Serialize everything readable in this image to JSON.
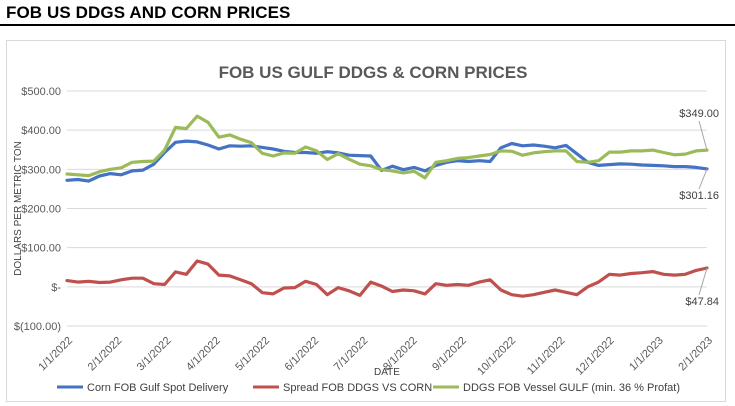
{
  "page": {
    "heading": "FOB US DDGS AND CORN PRICES"
  },
  "chart_data": {
    "type": "line",
    "title": "FOB US GULF DDGS & CORN PRICES",
    "xlabel": "DATE",
    "ylabel": "DOLLARS PER METRIC TON",
    "ylim": [
      -100,
      500
    ],
    "yticks": [
      {
        "value": 500,
        "label": "$500.00"
      },
      {
        "value": 400,
        "label": "$400.00"
      },
      {
        "value": 300,
        "label": "$300.00"
      },
      {
        "value": 200,
        "label": "$200.00"
      },
      {
        "value": 100,
        "label": "$100.00"
      },
      {
        "value": 0,
        "label": "$-"
      },
      {
        "value": -100,
        "label": "$(100.00)"
      }
    ],
    "x_tick_labels": [
      "1/1/2022",
      "2/1/2022",
      "3/1/2022",
      "4/1/2022",
      "5/1/2022",
      "6/1/2022",
      "7/1/2022",
      "8/1/2022",
      "9/1/2022",
      "10/1/2022",
      "11/1/2022",
      "12/1/2022",
      "1/1/2023",
      "2/1/2023"
    ],
    "grid": true,
    "legend_position": "bottom",
    "series": [
      {
        "name": "Corn FOB Gulf Spot Delivery",
        "color": "#4472c4",
        "end_label": "$301.16",
        "values": [
          272,
          274,
          270,
          283,
          289,
          286,
          296,
          298,
          313,
          343,
          369,
          372,
          370,
          362,
          352,
          360,
          359,
          360,
          356,
          352,
          346,
          343,
          343,
          341,
          345,
          342,
          336,
          335,
          334,
          297,
          308,
          299,
          305,
          296,
          310,
          318,
          322,
          320,
          322,
          320,
          355,
          366,
          360,
          362,
          359,
          355,
          361,
          340,
          318,
          310,
          312,
          314,
          313,
          311,
          310,
          309,
          307,
          307,
          305,
          301
        ]
      },
      {
        "name": "Spread FOB DDGS VS CORN",
        "color": "#c0504d",
        "end_label": "$47.84",
        "values": [
          16,
          12,
          14,
          11,
          12,
          18,
          22,
          22,
          8,
          6,
          38,
          32,
          66,
          58,
          30,
          28,
          18,
          8,
          -15,
          -18,
          -3,
          -2,
          14,
          6,
          -20,
          -2,
          -10,
          -22,
          12,
          2,
          -12,
          -8,
          -10,
          -18,
          8,
          4,
          6,
          4,
          12,
          18,
          -8,
          -20,
          -24,
          -20,
          -14,
          -8,
          -14,
          -20,
          0,
          12,
          32,
          30,
          34,
          36,
          39,
          32,
          30,
          32,
          42,
          48
        ]
      },
      {
        "name": "DDGS FOB Vessel GULF  (min. 36 % Profat)",
        "color": "#9bbb59",
        "end_label": "$349.00",
        "values": [
          288,
          286,
          284,
          294,
          300,
          304,
          318,
          320,
          321,
          349,
          407,
          404,
          436,
          420,
          382,
          388,
          377,
          368,
          341,
          334,
          342,
          341,
          357,
          347,
          325,
          340,
          326,
          313,
          309,
          299,
          296,
          291,
          295,
          278,
          318,
          322,
          328,
          330,
          334,
          338,
          347,
          346,
          336,
          342,
          345,
          347,
          347,
          320,
          318,
          322,
          344,
          344,
          347,
          347,
          349,
          343,
          337,
          339,
          347,
          349
        ]
      }
    ]
  }
}
